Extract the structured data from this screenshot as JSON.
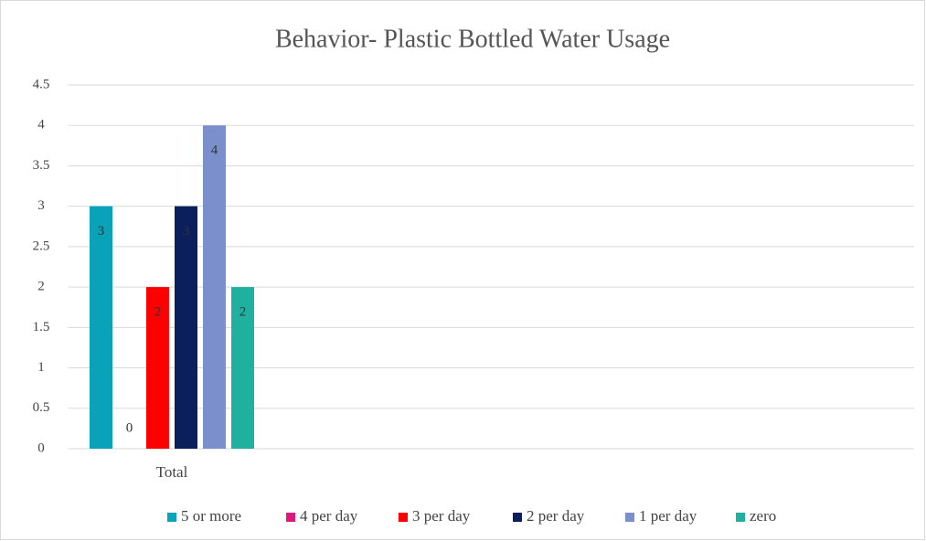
{
  "chart_data": {
    "type": "bar",
    "title": "Behavior- Plastic Bottled Water Usage",
    "categories": [
      "Total"
    ],
    "series": [
      {
        "name": "5 or more",
        "color": "#0aa2b8",
        "values": [
          3
        ]
      },
      {
        "name": "4 per day",
        "color": "#e0177c",
        "values": [
          0
        ]
      },
      {
        "name": "3 per day",
        "color": "#ff0000",
        "values": [
          2
        ]
      },
      {
        "name": "2 per day",
        "color": "#0b1f5c",
        "values": [
          3
        ]
      },
      {
        "name": "1 per day",
        "color": "#7a8fcc",
        "values": [
          4
        ]
      },
      {
        "name": "zero",
        "color": "#20b0a0",
        "values": [
          2
        ]
      }
    ],
    "ylim": [
      0,
      4.5
    ],
    "yticks": [
      0,
      0.5,
      1,
      1.5,
      2,
      2.5,
      3,
      3.5,
      4,
      4.5
    ],
    "grid": true,
    "legend": "bottom"
  }
}
